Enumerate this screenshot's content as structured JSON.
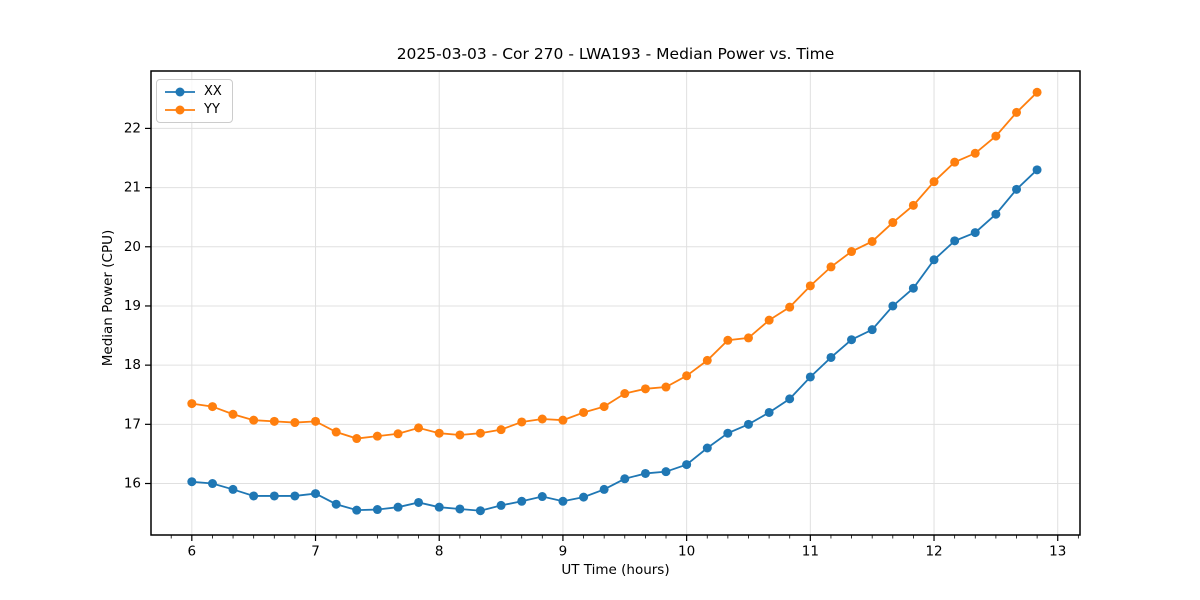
{
  "chart_data": {
    "type": "line",
    "title": "2025-03-03 - Cor 270 - LWA193 - Median Power vs. Time",
    "xlabel": "UT Time (hours)",
    "ylabel": "Median Power (CPU)",
    "xlim": [
      5.67,
      13.18
    ],
    "ylim": [
      15.13,
      22.97
    ],
    "x_major_ticks": [
      6,
      7,
      8,
      9,
      10,
      11,
      12,
      13
    ],
    "y_major_ticks": [
      16,
      17,
      18,
      19,
      20,
      21,
      22
    ],
    "x_minor_interval": 0.166667,
    "grid": true,
    "legend_position": "upper left",
    "x": [
      6.0,
      6.167,
      6.333,
      6.5,
      6.667,
      6.833,
      7.0,
      7.167,
      7.333,
      7.5,
      7.667,
      7.833,
      8.0,
      8.167,
      8.333,
      8.5,
      8.667,
      8.833,
      9.0,
      9.167,
      9.333,
      9.5,
      9.667,
      9.833,
      10.0,
      10.167,
      10.333,
      10.5,
      10.667,
      10.833,
      11.0,
      11.167,
      11.333,
      11.5,
      11.667,
      11.833,
      12.0,
      12.167,
      12.333,
      12.5,
      12.667,
      12.833
    ],
    "series": [
      {
        "name": "XX",
        "color": "#1f77b4",
        "values": [
          16.03,
          16.0,
          15.9,
          15.79,
          15.79,
          15.79,
          15.83,
          15.65,
          15.55,
          15.56,
          15.6,
          15.68,
          15.6,
          15.57,
          15.54,
          15.63,
          15.7,
          15.78,
          15.7,
          15.77,
          15.9,
          16.08,
          16.17,
          16.2,
          16.32,
          16.6,
          16.85,
          17.0,
          17.2,
          17.43,
          17.8,
          18.13,
          18.43,
          18.6,
          19.0,
          19.3,
          19.78,
          20.1,
          20.24,
          20.55,
          20.97,
          21.3
        ]
      },
      {
        "name": "YY",
        "color": "#ff7f0e",
        "values": [
          17.35,
          17.3,
          17.17,
          17.07,
          17.05,
          17.03,
          17.05,
          16.87,
          16.76,
          16.8,
          16.84,
          16.94,
          16.85,
          16.82,
          16.85,
          16.91,
          17.04,
          17.09,
          17.07,
          17.2,
          17.3,
          17.52,
          17.6,
          17.63,
          17.82,
          18.08,
          18.42,
          18.46,
          18.76,
          18.98,
          19.34,
          19.66,
          19.92,
          20.09,
          20.41,
          20.7,
          21.1,
          21.43,
          21.58,
          21.87,
          22.27,
          22.61
        ]
      }
    ]
  },
  "colors": {
    "grid": "#e0e0e0",
    "axis": "#000000",
    "background": "#ffffff",
    "legend_border": "#cccccc"
  }
}
